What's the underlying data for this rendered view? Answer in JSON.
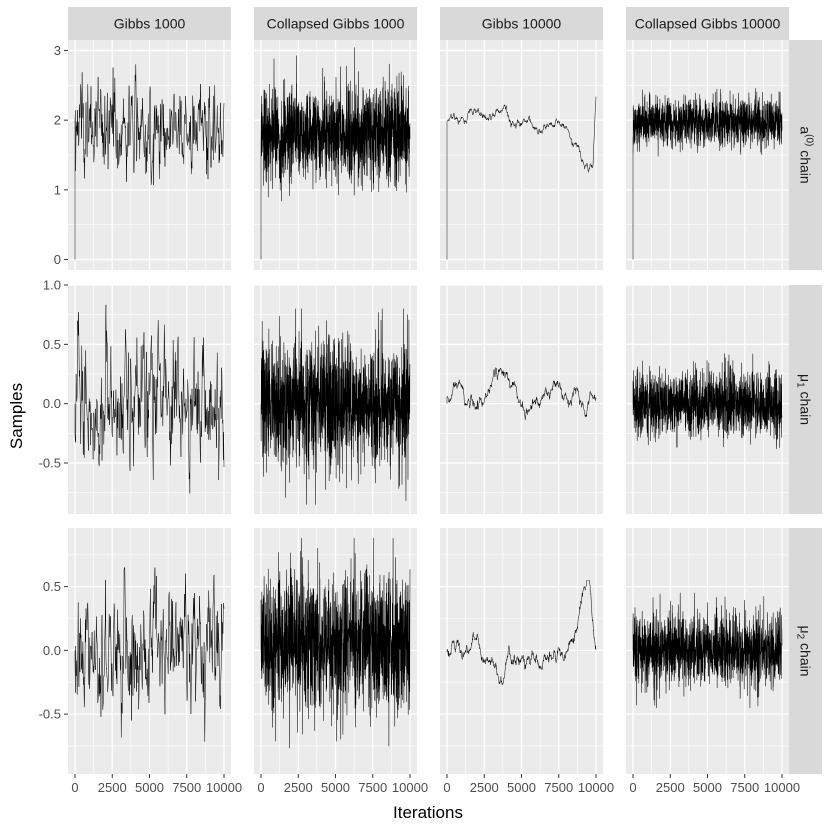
{
  "chart_data": {
    "type": "line",
    "xlabel": "Iterations",
    "ylabel": "Samples",
    "grid": true,
    "legend": "none",
    "facet_columns": [
      "Gibbs 1000",
      "Collapsed Gibbs 1000",
      "Gibbs 10000",
      "Collapsed Gibbs 10000"
    ],
    "facet_rows": [
      {
        "label_main": "a",
        "label_sup": "(0)",
        "label_sub": "",
        "label_tail": " chain"
      },
      {
        "label_main": "μ",
        "label_sup": "",
        "label_sub": "1",
        "label_tail": " chain"
      },
      {
        "label_main": "μ",
        "label_sup": "",
        "label_sub": "2",
        "label_tail": " chain"
      }
    ],
    "x_ticks": [
      0,
      2500,
      5000,
      7500,
      10000
    ],
    "x_tick_labels": [
      "0",
      "2500",
      "5000",
      "7500",
      "10000"
    ],
    "x_range": [
      0,
      10000
    ],
    "rows": [
      {
        "ylim": [
          -0.15,
          3.15
        ],
        "y_ticks": [
          0,
          1,
          2,
          3
        ],
        "y_tick_labels": [
          "0",
          "1",
          "2",
          "3"
        ]
      },
      {
        "ylim": [
          -0.93,
          1.0
        ],
        "y_ticks": [
          -0.5,
          0.0,
          0.5,
          1.0
        ],
        "y_tick_labels": [
          "-0.5",
          "0.0",
          "0.5",
          "1.0"
        ]
      },
      {
        "ylim": [
          -0.97,
          0.96
        ],
        "y_ticks": [
          -0.5,
          0.0,
          0.5
        ],
        "y_tick_labels": [
          "-0.5",
          "0.0",
          "0.5"
        ]
      }
    ],
    "panels": [
      {
        "row": 0,
        "col": 0,
        "n_iter": 1000,
        "collapsed": false,
        "start": 0,
        "mean": 1.9,
        "sd": 0.36,
        "min": 0.7,
        "max": 2.8,
        "drift": "flat"
      },
      {
        "row": 0,
        "col": 1,
        "n_iter": 1000,
        "collapsed": true,
        "start": 0,
        "mean": 1.8,
        "sd": 0.34,
        "min": 0.45,
        "max": 3.1,
        "drift": "flat"
      },
      {
        "row": 0,
        "col": 2,
        "n_iter": 10000,
        "collapsed": false,
        "start": 0,
        "mean": 2.0,
        "sd": 0.1,
        "min": 1.25,
        "max": 2.35,
        "drift": "dip-end"
      },
      {
        "row": 0,
        "col": 3,
        "n_iter": 10000,
        "collapsed": true,
        "start": 0,
        "mean": 1.98,
        "sd": 0.17,
        "min": 1.45,
        "max": 2.6,
        "drift": "flat"
      },
      {
        "row": 1,
        "col": 0,
        "n_iter": 1000,
        "collapsed": false,
        "start": 0.0,
        "mean": 0.0,
        "sd": 0.28,
        "min": -0.8,
        "max": 0.92,
        "drift": "flat"
      },
      {
        "row": 1,
        "col": 1,
        "n_iter": 1000,
        "collapsed": true,
        "start": 0.0,
        "mean": 0.0,
        "sd": 0.27,
        "min": -0.85,
        "max": 0.8,
        "drift": "flat"
      },
      {
        "row": 1,
        "col": 2,
        "n_iter": 10000,
        "collapsed": false,
        "start": 0.0,
        "mean": 0.05,
        "sd": 0.09,
        "min": -0.3,
        "max": 0.45,
        "drift": "flat"
      },
      {
        "row": 1,
        "col": 3,
        "n_iter": 10000,
        "collapsed": true,
        "start": 0.0,
        "mean": 0.0,
        "sd": 0.14,
        "min": -0.45,
        "max": 0.53,
        "drift": "flat"
      },
      {
        "row": 2,
        "col": 0,
        "n_iter": 1000,
        "collapsed": false,
        "start": 0.0,
        "mean": 0.0,
        "sd": 0.25,
        "min": -0.78,
        "max": 0.65,
        "drift": "flat"
      },
      {
        "row": 2,
        "col": 1,
        "n_iter": 1000,
        "collapsed": true,
        "start": 0.0,
        "mean": 0.05,
        "sd": 0.27,
        "min": -0.9,
        "max": 0.88,
        "drift": "flat"
      },
      {
        "row": 2,
        "col": 2,
        "n_iter": 10000,
        "collapsed": false,
        "start": 0.0,
        "mean": 0.02,
        "sd": 0.09,
        "min": -0.3,
        "max": 0.55,
        "drift": "rise-end"
      },
      {
        "row": 2,
        "col": 3,
        "n_iter": 10000,
        "collapsed": true,
        "start": 0.0,
        "mean": 0.0,
        "sd": 0.14,
        "min": -0.45,
        "max": 0.45,
        "drift": "flat"
      }
    ]
  },
  "colors": {
    "panel_background": "#ebebeb",
    "grid_major": "#ffffff",
    "strip_background": "#d9d9d9",
    "trace": "#000000",
    "tick_text": "#4d4d4d",
    "tick_mark": "#333333",
    "title_text": "#000000"
  }
}
